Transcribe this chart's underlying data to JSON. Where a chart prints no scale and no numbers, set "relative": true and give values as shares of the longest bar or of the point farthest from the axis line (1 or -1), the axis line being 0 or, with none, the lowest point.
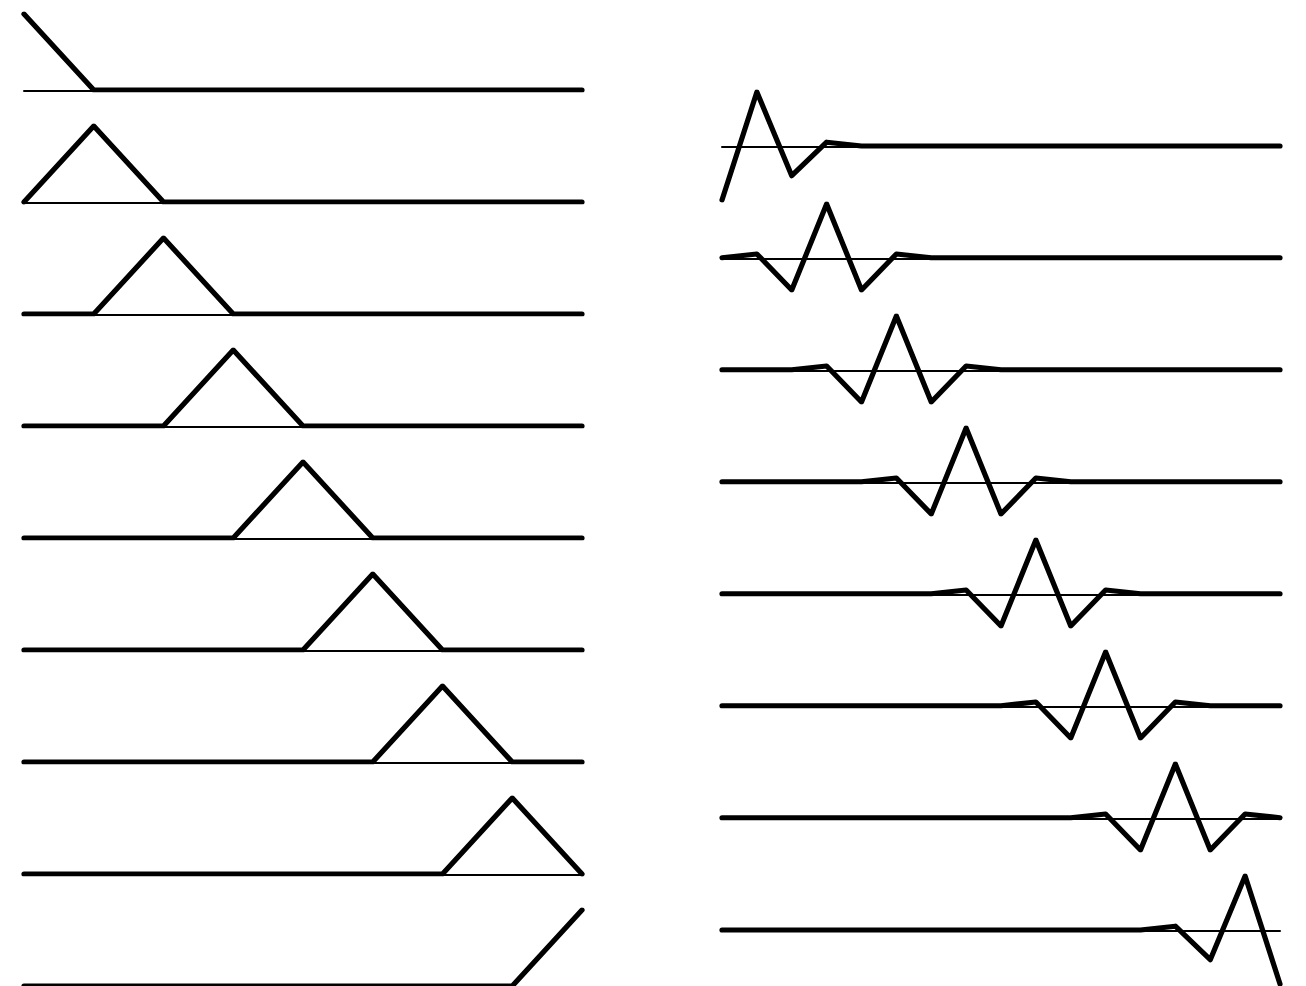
{
  "chart_data": [
    {
      "type": "line",
      "categories": [
        null,
        null,
        null,
        null,
        null,
        null,
        null,
        null,
        null
      ],
      "values": [
        1,
        0,
        0,
        0,
        0,
        0,
        0,
        0,
        0
      ],
      "relative": true,
      "color": "#000000",
      "marker": "none",
      "tick_labels": false
    },
    {
      "type": "line",
      "categories": [
        null,
        null,
        null,
        null,
        null,
        null,
        null,
        null,
        null
      ],
      "values": [
        0,
        1,
        0,
        0,
        0,
        0,
        0,
        0,
        0
      ],
      "relative": true,
      "color": "#000000",
      "marker": "none",
      "tick_labels": false
    },
    {
      "type": "line",
      "categories": [
        null,
        null,
        null,
        null,
        null,
        null,
        null,
        null,
        null
      ],
      "values": [
        0,
        0,
        1,
        0,
        0,
        0,
        0,
        0,
        0
      ],
      "relative": true,
      "color": "#000000",
      "marker": "none",
      "tick_labels": false
    },
    {
      "type": "line",
      "categories": [
        null,
        null,
        null,
        null,
        null,
        null,
        null,
        null,
        null
      ],
      "values": [
        0,
        0,
        0,
        1,
        0,
        0,
        0,
        0,
        0
      ],
      "relative": true,
      "color": "#000000",
      "marker": "none",
      "tick_labels": false
    },
    {
      "type": "line",
      "categories": [
        null,
        null,
        null,
        null,
        null,
        null,
        null,
        null,
        null
      ],
      "values": [
        0,
        0,
        0,
        0,
        1,
        0,
        0,
        0,
        0
      ],
      "relative": true,
      "color": "#000000",
      "marker": "none",
      "tick_labels": false
    },
    {
      "type": "line",
      "categories": [
        null,
        null,
        null,
        null,
        null,
        null,
        null,
        null,
        null
      ],
      "values": [
        0,
        0,
        0,
        0,
        0,
        1,
        0,
        0,
        0
      ],
      "relative": true,
      "color": "#000000",
      "marker": "none",
      "tick_labels": false
    },
    {
      "type": "line",
      "categories": [
        null,
        null,
        null,
        null,
        null,
        null,
        null,
        null,
        null
      ],
      "values": [
        0,
        0,
        0,
        0,
        0,
        0,
        1,
        0,
        0
      ],
      "relative": true,
      "color": "#000000",
      "marker": "none",
      "tick_labels": false
    },
    {
      "type": "line",
      "categories": [
        null,
        null,
        null,
        null,
        null,
        null,
        null,
        null,
        null
      ],
      "values": [
        0,
        0,
        0,
        0,
        0,
        0,
        0,
        1,
        0
      ],
      "relative": true,
      "color": "#000000",
      "marker": "none",
      "tick_labels": false
    },
    {
      "type": "line",
      "categories": [
        null,
        null,
        null,
        null,
        null,
        null,
        null,
        null,
        null
      ],
      "values": [
        0,
        0,
        0,
        0,
        0,
        0,
        0,
        0,
        1
      ],
      "relative": true,
      "color": "#000000",
      "marker": "none",
      "tick_labels": false
    },
    {
      "type": "line",
      "categories": [
        null,
        null,
        null,
        null,
        null,
        null,
        null,
        null,
        null,
        null,
        null,
        null,
        null,
        null,
        null,
        null,
        null
      ],
      "values": [
        -1,
        1,
        -0.55,
        0.07,
        0,
        0,
        0,
        0,
        0,
        0,
        0,
        0,
        0,
        0,
        0,
        0,
        0
      ],
      "relative": true,
      "color": "#000000",
      "marker": "none",
      "tick_labels": false
    },
    {
      "type": "line",
      "categories": [
        null,
        null,
        null,
        null,
        null,
        null,
        null,
        null,
        null,
        null,
        null,
        null,
        null,
        null,
        null,
        null,
        null
      ],
      "values": [
        0,
        0.07,
        -0.6,
        1,
        -0.6,
        0.07,
        0,
        0,
        0,
        0,
        0,
        0,
        0,
        0,
        0,
        0,
        0
      ],
      "relative": true,
      "color": "#000000",
      "marker": "none",
      "tick_labels": false
    },
    {
      "type": "line",
      "categories": [
        null,
        null,
        null,
        null,
        null,
        null,
        null,
        null,
        null,
        null,
        null,
        null,
        null,
        null,
        null,
        null,
        null
      ],
      "values": [
        0,
        0,
        0,
        0.07,
        -0.6,
        1,
        -0.6,
        0.07,
        0,
        0,
        0,
        0,
        0,
        0,
        0,
        0,
        0
      ],
      "relative": true,
      "color": "#000000",
      "marker": "none",
      "tick_labels": false
    },
    {
      "type": "line",
      "categories": [
        null,
        null,
        null,
        null,
        null,
        null,
        null,
        null,
        null,
        null,
        null,
        null,
        null,
        null,
        null,
        null,
        null
      ],
      "values": [
        0,
        0,
        0,
        0,
        0,
        0.07,
        -0.6,
        1,
        -0.6,
        0.07,
        0,
        0,
        0,
        0,
        0,
        0,
        0
      ],
      "relative": true,
      "color": "#000000",
      "marker": "none",
      "tick_labels": false
    },
    {
      "type": "line",
      "categories": [
        null,
        null,
        null,
        null,
        null,
        null,
        null,
        null,
        null,
        null,
        null,
        null,
        null,
        null,
        null,
        null,
        null
      ],
      "values": [
        0,
        0,
        0,
        0,
        0,
        0,
        0,
        0.07,
        -0.6,
        1,
        -0.6,
        0.07,
        0,
        0,
        0,
        0,
        0
      ],
      "relative": true,
      "color": "#000000",
      "marker": "none",
      "tick_labels": false
    },
    {
      "type": "line",
      "categories": [
        null,
        null,
        null,
        null,
        null,
        null,
        null,
        null,
        null,
        null,
        null,
        null,
        null,
        null,
        null,
        null,
        null
      ],
      "values": [
        0,
        0,
        0,
        0,
        0,
        0,
        0,
        0,
        0,
        0.07,
        -0.6,
        1,
        -0.6,
        0.07,
        0,
        0,
        0
      ],
      "relative": true,
      "color": "#000000",
      "marker": "none",
      "tick_labels": false
    },
    {
      "type": "line",
      "categories": [
        null,
        null,
        null,
        null,
        null,
        null,
        null,
        null,
        null,
        null,
        null,
        null,
        null,
        null,
        null,
        null,
        null
      ],
      "values": [
        0,
        0,
        0,
        0,
        0,
        0,
        0,
        0,
        0,
        0,
        0,
        0.07,
        -0.6,
        1,
        -0.6,
        0.07,
        0
      ],
      "relative": true,
      "color": "#000000",
      "marker": "none",
      "tick_labels": false
    },
    {
      "type": "line",
      "categories": [
        null,
        null,
        null,
        null,
        null,
        null,
        null,
        null,
        null,
        null,
        null,
        null,
        null,
        null,
        null,
        null,
        null
      ],
      "values": [
        0,
        0,
        0,
        0,
        0,
        0,
        0,
        0,
        0,
        0,
        0,
        0,
        0,
        0.07,
        -0.55,
        1,
        -1
      ],
      "relative": true,
      "color": "#000000",
      "marker": "none",
      "tick_labels": false
    }
  ]
}
